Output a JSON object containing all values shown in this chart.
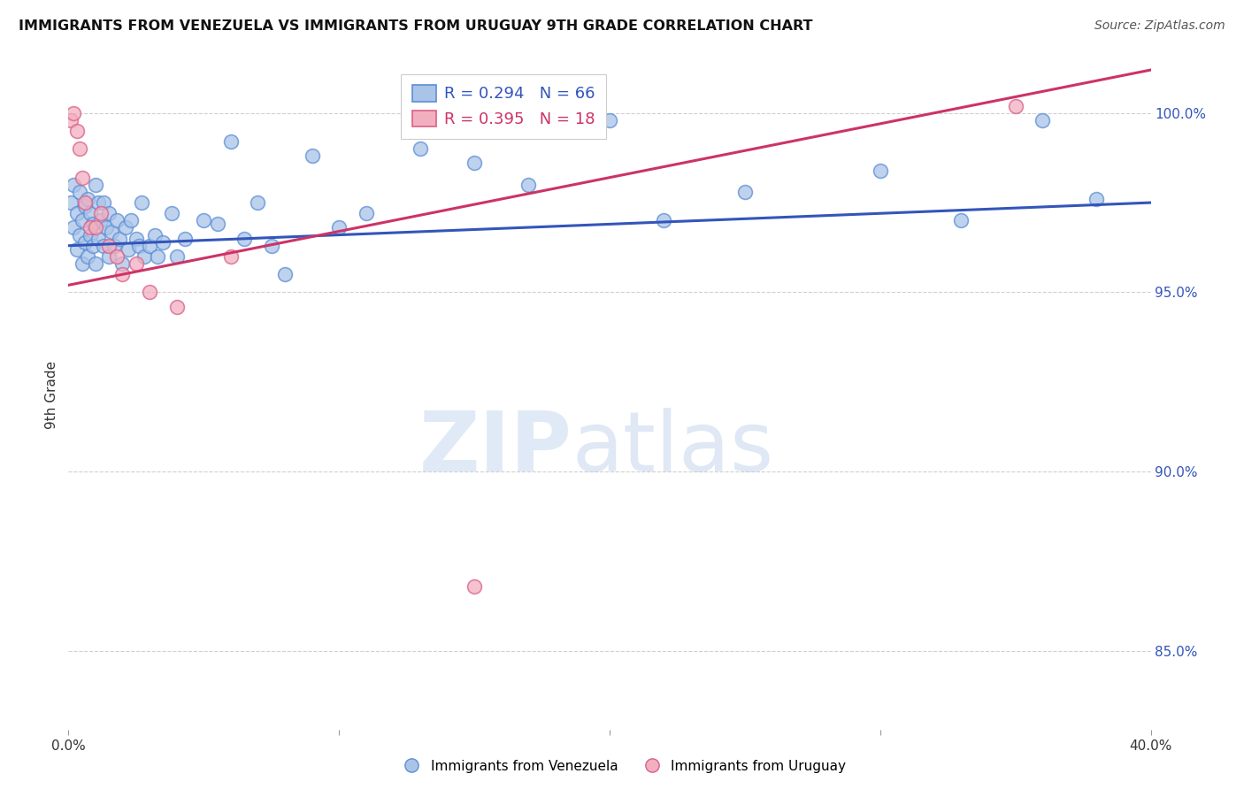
{
  "title": "IMMIGRANTS FROM VENEZUELA VS IMMIGRANTS FROM URUGUAY 9TH GRADE CORRELATION CHART",
  "source": "Source: ZipAtlas.com",
  "ylabel": "9th Grade",
  "xlim": [
    0.0,
    0.4
  ],
  "ylim": [
    0.828,
    1.015
  ],
  "x_ticks": [
    0.0,
    0.1,
    0.2,
    0.3,
    0.4
  ],
  "x_tick_labels": [
    "0.0%",
    "",
    "",
    "",
    "40.0%"
  ],
  "y_ticks": [
    0.85,
    0.9,
    0.95,
    1.0
  ],
  "y_tick_labels": [
    "85.0%",
    "90.0%",
    "95.0%",
    "100.0%"
  ],
  "grid_color": "#d0d0d0",
  "background_color": "#ffffff",
  "venezuela_color": "#aac4e8",
  "venezuela_edge_color": "#5b8ed6",
  "uruguay_color": "#f2afc0",
  "uruguay_edge_color": "#d96088",
  "venezuela_line_color": "#3355bb",
  "uruguay_line_color": "#cc3366",
  "R_venezuela": 0.294,
  "N_venezuela": 66,
  "R_uruguay": 0.395,
  "N_uruguay": 18,
  "blue_line_x0": 0.0,
  "blue_line_y0": 0.963,
  "blue_line_x1": 0.4,
  "blue_line_y1": 0.975,
  "pink_line_x0": 0.0,
  "pink_line_y0": 0.952,
  "pink_line_x1": 0.4,
  "pink_line_y1": 1.012,
  "venezuela_pts_x": [
    0.001,
    0.002,
    0.002,
    0.003,
    0.003,
    0.004,
    0.004,
    0.005,
    0.005,
    0.006,
    0.006,
    0.007,
    0.007,
    0.008,
    0.008,
    0.009,
    0.009,
    0.01,
    0.01,
    0.011,
    0.011,
    0.012,
    0.013,
    0.013,
    0.014,
    0.015,
    0.015,
    0.016,
    0.017,
    0.018,
    0.019,
    0.02,
    0.021,
    0.022,
    0.023,
    0.025,
    0.026,
    0.027,
    0.028,
    0.03,
    0.032,
    0.033,
    0.035,
    0.038,
    0.04,
    0.043,
    0.05,
    0.055,
    0.06,
    0.065,
    0.07,
    0.075,
    0.08,
    0.09,
    0.1,
    0.11,
    0.13,
    0.15,
    0.17,
    0.2,
    0.22,
    0.25,
    0.3,
    0.33,
    0.36,
    0.38
  ],
  "venezuela_pts_y": [
    0.975,
    0.968,
    0.98,
    0.962,
    0.972,
    0.966,
    0.978,
    0.97,
    0.958,
    0.974,
    0.964,
    0.976,
    0.96,
    0.966,
    0.972,
    0.963,
    0.969,
    0.98,
    0.958,
    0.975,
    0.965,
    0.97,
    0.975,
    0.963,
    0.968,
    0.972,
    0.96,
    0.967,
    0.963,
    0.97,
    0.965,
    0.958,
    0.968,
    0.962,
    0.97,
    0.965,
    0.963,
    0.975,
    0.96,
    0.963,
    0.966,
    0.96,
    0.964,
    0.972,
    0.96,
    0.965,
    0.97,
    0.969,
    0.992,
    0.965,
    0.975,
    0.963,
    0.955,
    0.988,
    0.968,
    0.972,
    0.99,
    0.986,
    0.98,
    0.998,
    0.97,
    0.978,
    0.984,
    0.97,
    0.998,
    0.976
  ],
  "uruguay_pts_x": [
    0.001,
    0.002,
    0.003,
    0.004,
    0.005,
    0.006,
    0.008,
    0.01,
    0.012,
    0.015,
    0.018,
    0.02,
    0.025,
    0.03,
    0.04,
    0.06,
    0.15,
    0.35
  ],
  "uruguay_pts_y": [
    0.998,
    1.0,
    0.995,
    0.99,
    0.982,
    0.975,
    0.968,
    0.968,
    0.972,
    0.963,
    0.96,
    0.955,
    0.958,
    0.95,
    0.946,
    0.96,
    0.868,
    1.002
  ]
}
